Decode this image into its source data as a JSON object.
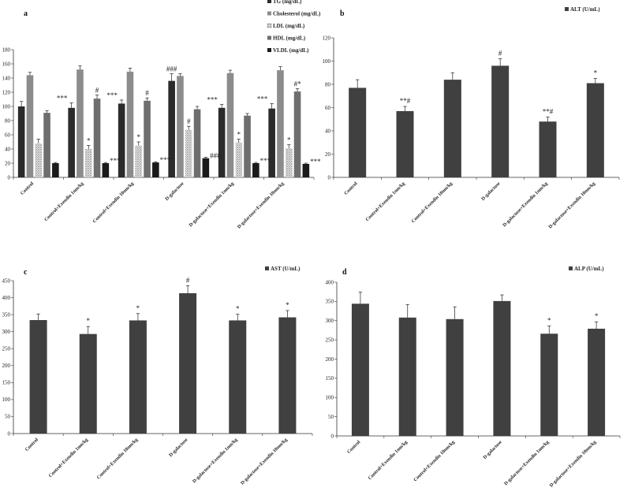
{
  "chart_data": [
    {
      "panel": "a",
      "type": "bar",
      "categories": [
        "Control",
        "Control+Exendin 1nm/kg",
        "Control+Exendin 10nm/kg",
        "D-galactose",
        "D-galactose+Exendin 1nm/kg",
        "D-galactose+Exendin 10nm/kg"
      ],
      "ylim": [
        0,
        180
      ],
      "yticks": [
        0,
        20,
        40,
        60,
        80,
        100,
        120,
        140,
        160,
        180
      ],
      "series": [
        {
          "name": "TG (mg/dL)",
          "color": "#2b2b2b",
          "pattern": "solid",
          "values": [
            100,
            98,
            104,
            136,
            98,
            97
          ],
          "errors": [
            7,
            7,
            5,
            10,
            5,
            7
          ],
          "annotations": [
            "",
            "***",
            "***",
            "###",
            "***",
            "***"
          ]
        },
        {
          "name": "Cholesterol (mg/dL)",
          "color": "#8c8c8c",
          "pattern": "solid",
          "values": [
            144,
            152,
            149,
            143,
            147,
            151
          ],
          "errors": [
            4,
            5,
            5,
            3,
            4,
            5
          ],
          "annotations": [
            "",
            "",
            "",
            "",
            "",
            ""
          ]
        },
        {
          "name": "LDL (mg/dL)",
          "color": "#d6d6d6",
          "pattern": "dots",
          "values": [
            48,
            40,
            45,
            67,
            49,
            41
          ],
          "errors": [
            6,
            5,
            5,
            5,
            5,
            5
          ],
          "annotations": [
            "",
            "*",
            "*",
            "#",
            "*",
            "*"
          ]
        },
        {
          "name": "HDL (mg/dL)",
          "color": "#6e6e6e",
          "pattern": "solid",
          "values": [
            91,
            111,
            108,
            96,
            87,
            121
          ],
          "errors": [
            3,
            5,
            4,
            4,
            3,
            4
          ],
          "annotations": [
            "",
            "#",
            "#",
            "",
            "",
            "#*"
          ]
        },
        {
          "name": "VLDL (mg/dL)",
          "color": "#1a1a1a",
          "pattern": "solid",
          "values": [
            20,
            20,
            21,
            27,
            20,
            19
          ],
          "errors": [
            1,
            1,
            1,
            1.5,
            1,
            1
          ],
          "annotations": [
            "",
            "***",
            "***",
            "###",
            "***",
            "***"
          ]
        }
      ]
    },
    {
      "panel": "b",
      "type": "bar",
      "categories": [
        "Control",
        "Control+Exendin 1nm/kg",
        "Control+Exendin 10nm/kg",
        "D-galactose",
        "D-galactose+Exendin 1nm/kg",
        "D-galactose+Exendin 10nm/kg"
      ],
      "ylim": [
        0,
        120
      ],
      "yticks": [
        0,
        20,
        40,
        60,
        80,
        100,
        120
      ],
      "series": [
        {
          "name": "ALT (U/mL)",
          "color": "#404040",
          "values": [
            77,
            57,
            84,
            96,
            48,
            81
          ],
          "errors": [
            7,
            4,
            6,
            6,
            4,
            4
          ],
          "annotations": [
            "",
            "**#",
            "",
            "#",
            "**#",
            "*"
          ]
        }
      ]
    },
    {
      "panel": "c",
      "type": "bar",
      "categories": [
        "Control",
        "Control+Exendin 1nm/kg",
        "Control+Exendin 10nm/kg",
        "D-galactose",
        "D-galactose+Exendin 1nm/kg",
        "D-galactose+Exendin 10nm/kg"
      ],
      "ylim": [
        0,
        450
      ],
      "yticks": [
        0,
        50,
        100,
        150,
        200,
        250,
        300,
        350,
        400,
        450
      ],
      "series": [
        {
          "name": "AST (U/mL)",
          "color": "#404040",
          "values": [
            334,
            293,
            333,
            413,
            333,
            342
          ],
          "errors": [
            18,
            22,
            20,
            22,
            18,
            20
          ],
          "annotations": [
            "",
            "*",
            "*",
            "#",
            "*",
            "*"
          ]
        }
      ]
    },
    {
      "panel": "d",
      "type": "bar",
      "categories": [
        "Control",
        "Control+Exendin 1nm/kg",
        "Control+Exendin 10nm/kg",
        "D-galactose",
        "D-galactose+Exendin 1nm/kg",
        "D-galactose+Exendin 10nm/kg"
      ],
      "ylim": [
        0,
        400
      ],
      "yticks": [
        0,
        50,
        100,
        150,
        200,
        250,
        300,
        350,
        400
      ],
      "series": [
        {
          "name": "ALP (U/mL)",
          "color": "#404040",
          "values": [
            344,
            308,
            304,
            351,
            266,
            279
          ],
          "errors": [
            30,
            34,
            32,
            16,
            20,
            18
          ],
          "annotations": [
            "",
            "",
            "",
            "",
            "*",
            "*"
          ]
        }
      ]
    }
  ]
}
